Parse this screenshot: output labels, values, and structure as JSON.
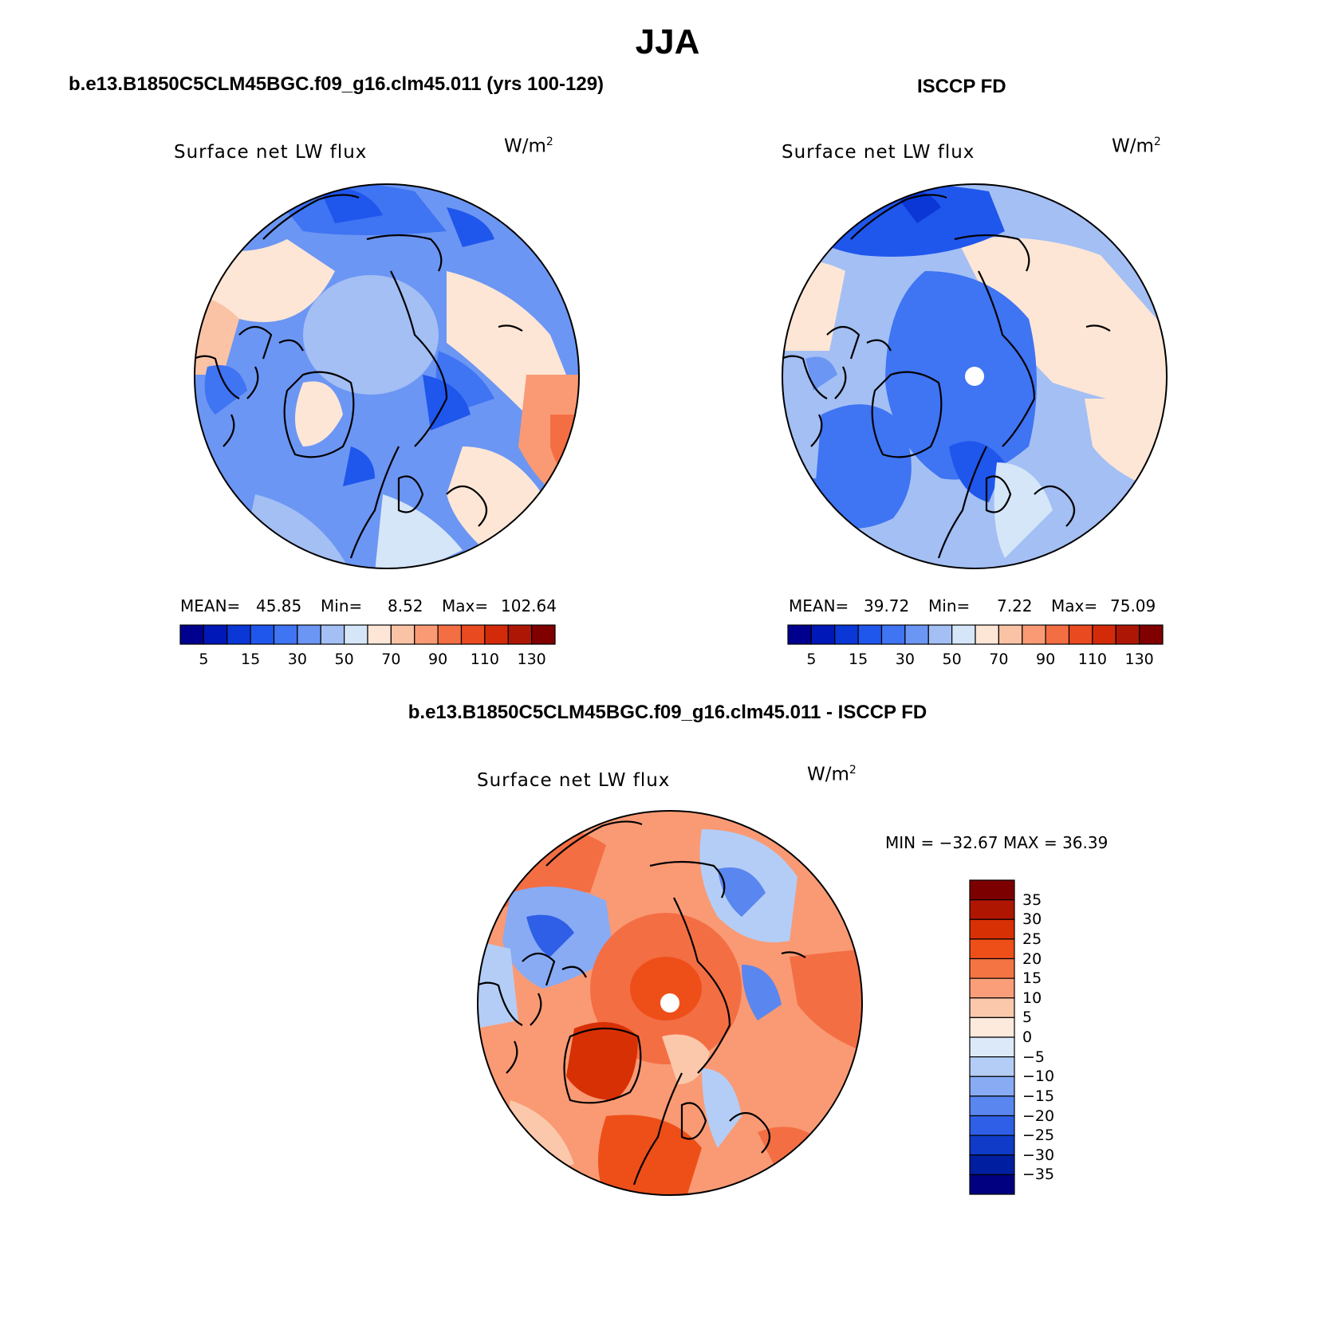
{
  "title": "JJA",
  "panels": [
    {
      "case_title": "b.e13.B1850C5CLM45BGC.f09_g16.clm45.011 (yrs 100-129)",
      "plot_title": "Surface net LW flux",
      "units_base": "W/m",
      "units_exp": "2",
      "mean_label": "MEAN=",
      "mean": "45.85",
      "min_label": "Min=",
      "min": "8.52",
      "max_label": "Max=",
      "max": "102.64",
      "colorbar_labels": [
        "5",
        "15",
        "30",
        "50",
        "70",
        "90",
        "110",
        "130"
      ],
      "has_pole_hole": false
    },
    {
      "case_title": "ISCCP FD",
      "plot_title": "Surface net LW flux",
      "units_base": "W/m",
      "units_exp": "2",
      "mean_label": "MEAN=",
      "mean": "39.72",
      "min_label": "Min=",
      "min": "7.22",
      "max_label": "Max=",
      "max": "75.09",
      "colorbar_labels": [
        "5",
        "15",
        "30",
        "50",
        "70",
        "90",
        "110",
        "130"
      ],
      "has_pole_hole": true
    }
  ],
  "diff_panel": {
    "case_title": "b.e13.B1850C5CLM45BGC.f09_g16.clm45.011 - ISCCP FD",
    "plot_title": "Surface net LW flux",
    "units_base": "W/m",
    "units_exp": "2",
    "minmax_text": "MIN = −32.67 MAX =   36.39",
    "colorbar_labels": [
      "35",
      "30",
      "25",
      "20",
      "15",
      "10",
      "5",
      "0",
      "−5",
      "−10",
      "−15",
      "−20",
      "−25",
      "−30",
      "−35"
    ]
  },
  "colors": {
    "field_scale": [
      "#00008f",
      "#0018b8",
      "#0a37d6",
      "#1f56ec",
      "#3f74f3",
      "#6c96f3",
      "#a3bff4",
      "#d5e6f8",
      "#fde6d6",
      "#fbc3a6",
      "#f99a74",
      "#f46e44",
      "#ea4a1f",
      "#d32b0a",
      "#ad1605",
      "#800000"
    ],
    "diff_scale": [
      "#7d0000",
      "#ae1602",
      "#d83005",
      "#ee4f18",
      "#f57444",
      "#f99e78",
      "#fbc8ab",
      "#fdeadc",
      "#dce9f9",
      "#b4cdf6",
      "#88abf4",
      "#5a86f0",
      "#2e5fe6",
      "#0f3bc8",
      "#001fa0",
      "#000080"
    ],
    "background": "#ffffff",
    "coastline": "#000000"
  }
}
